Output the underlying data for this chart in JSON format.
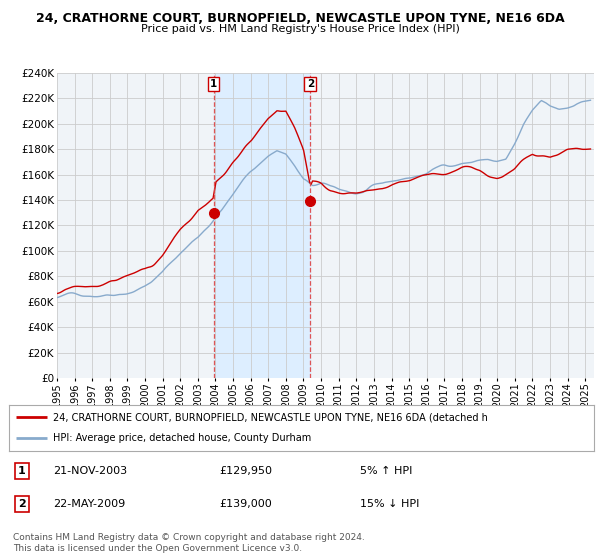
{
  "title": "24, CRATHORNE COURT, BURNOPFIELD, NEWCASTLE UPON TYNE, NE16 6DA",
  "subtitle": "Price paid vs. HM Land Registry's House Price Index (HPI)",
  "ylim": [
    0,
    240000
  ],
  "yticks": [
    0,
    20000,
    40000,
    60000,
    80000,
    100000,
    120000,
    140000,
    160000,
    180000,
    200000,
    220000,
    240000
  ],
  "xlim_start": 1995.0,
  "xlim_end": 2025.5,
  "sale1_x": 2003.89,
  "sale1_y": 129950,
  "sale2_x": 2009.39,
  "sale2_y": 139000,
  "sale1_date": "21-NOV-2003",
  "sale1_price": "£129,950",
  "sale1_hpi": "5% ↑ HPI",
  "sale2_date": "22-MAY-2009",
  "sale2_price": "£139,000",
  "sale2_hpi": "15% ↓ HPI",
  "line_color_property": "#cc0000",
  "line_color_hpi": "#88aacc",
  "background_plot": "#f0f4f8",
  "background_fig": "#ffffff",
  "shade_color": "#ddeeff",
  "vline_color": "#dd4444",
  "grid_color": "#cccccc",
  "legend_line1": "24, CRATHORNE COURT, BURNOPFIELD, NEWCASTLE UPON TYNE, NE16 6DA (detached h",
  "legend_line2": "HPI: Average price, detached house, County Durham",
  "footnote": "Contains HM Land Registry data © Crown copyright and database right 2024.\nThis data is licensed under the Open Government Licence v3.0.",
  "hpi_keypoints_x": [
    1995.0,
    1996.0,
    1997.0,
    1998.0,
    1999.0,
    2000.0,
    2001.0,
    2002.0,
    2003.0,
    2004.0,
    2005.0,
    2006.0,
    2007.0,
    2007.5,
    2008.0,
    2008.5,
    2009.0,
    2009.5,
    2010.0,
    2010.5,
    2011.0,
    2011.5,
    2012.0,
    2012.5,
    2013.0,
    2013.5,
    2014.0,
    2014.5,
    2015.0,
    2015.5,
    2016.0,
    2016.5,
    2017.0,
    2017.5,
    2018.0,
    2018.5,
    2019.0,
    2019.5,
    2020.0,
    2020.5,
    2021.0,
    2021.5,
    2022.0,
    2022.5,
    2023.0,
    2023.5,
    2024.0,
    2024.5,
    2025.3
  ],
  "hpi_keypoints_y": [
    63000,
    65000,
    67000,
    70000,
    74000,
    80000,
    90000,
    105000,
    118000,
    135000,
    152000,
    170000,
    183000,
    188000,
    185000,
    175000,
    163000,
    158000,
    158000,
    155000,
    153000,
    152000,
    150000,
    151000,
    152000,
    153000,
    155000,
    157000,
    158000,
    160000,
    162000,
    165000,
    168000,
    170000,
    172000,
    173000,
    174000,
    175000,
    173000,
    174000,
    185000,
    198000,
    208000,
    215000,
    210000,
    208000,
    210000,
    215000,
    218000
  ],
  "prop_keypoints_x": [
    1995.0,
    1996.0,
    1997.0,
    1998.0,
    1999.0,
    2000.0,
    2001.0,
    2002.0,
    2003.0,
    2003.89,
    2004.0,
    2005.0,
    2006.0,
    2007.0,
    2007.5,
    2008.0,
    2008.5,
    2009.0,
    2009.39,
    2009.5,
    2010.0,
    2010.5,
    2011.0,
    2011.5,
    2012.0,
    2012.5,
    2013.0,
    2013.5,
    2014.0,
    2015.0,
    2016.0,
    2017.0,
    2018.0,
    2019.0,
    2020.0,
    2021.0,
    2022.0,
    2023.0,
    2024.0,
    2025.3
  ],
  "prop_keypoints_y": [
    67000,
    69000,
    71000,
    74000,
    78000,
    84000,
    95000,
    112000,
    125000,
    129950,
    142000,
    160000,
    175000,
    196000,
    202000,
    200000,
    185000,
    168000,
    139000,
    143000,
    142000,
    138000,
    137000,
    136000,
    135000,
    136000,
    137000,
    138000,
    140000,
    143000,
    146000,
    150000,
    154000,
    157000,
    155000,
    164000,
    175000,
    172000,
    178000,
    182000
  ]
}
